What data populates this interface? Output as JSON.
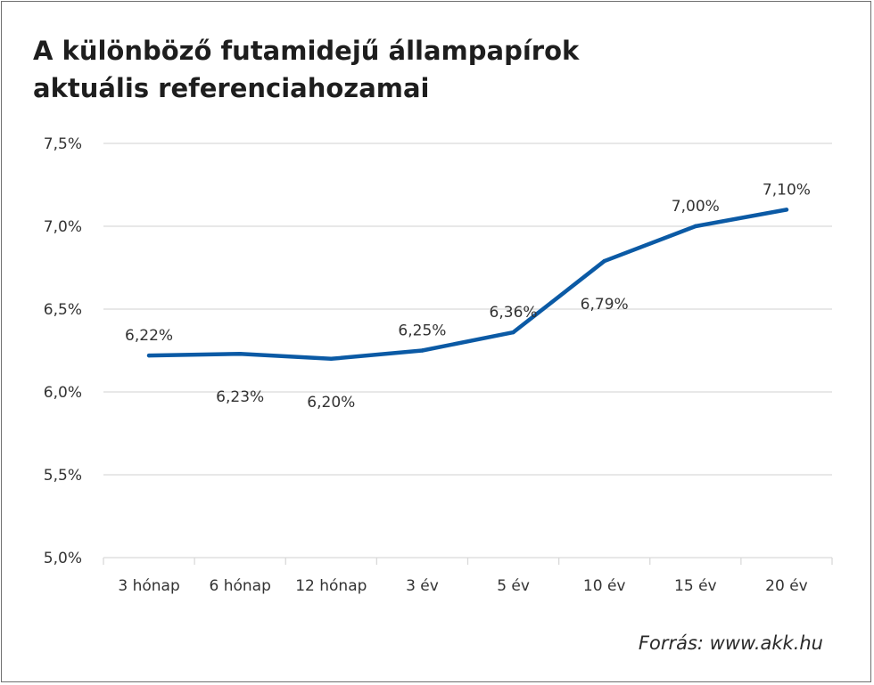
{
  "chart_data": {
    "type": "line",
    "title_lines": [
      "A különböző futamidejű állampapírok",
      "aktuális referenciahozamai"
    ],
    "categories": [
      "3 hónap",
      "6 hónap",
      "12 hónap",
      "3 év",
      "5 év",
      "10 év",
      "15 év",
      "20 év"
    ],
    "series": [
      {
        "values": [
          6.22,
          6.23,
          6.2,
          6.25,
          6.36,
          6.79,
          7.0,
          7.1
        ],
        "data_labels": [
          "6,22%",
          "6,23%",
          "6,20%",
          "6,25%",
          "6,36%",
          "6,79%",
          "7,00%",
          "7,10%"
        ],
        "label_side": [
          "above",
          "below",
          "below",
          "above",
          "above",
          "below",
          "above",
          "above"
        ],
        "color": "#0b5aa5"
      }
    ],
    "y_ticks": [
      5.0,
      5.5,
      6.0,
      6.5,
      7.0,
      7.5
    ],
    "y_tick_labels": [
      "5,0%",
      "5,5%",
      "6,0%",
      "6,5%",
      "7,0%",
      "7,5%"
    ],
    "ylim": [
      5.0,
      7.5
    ],
    "grid": true,
    "legend": "none",
    "gridline_color": "#d9d9d9"
  },
  "source": "Forrás: www.akk.hu"
}
